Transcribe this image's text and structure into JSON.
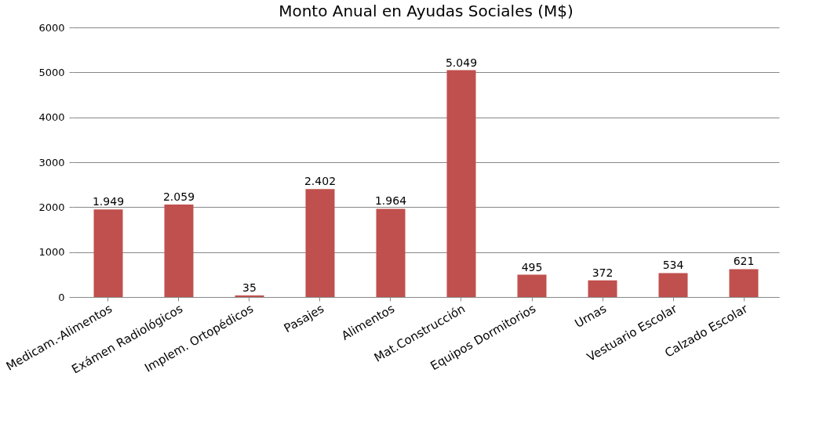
{
  "chart_data": {
    "type": "bar",
    "title": "Monto Anual en Ayudas Sociales (M$)",
    "categories": [
      "Medicam.-Alimentos",
      "Exámen Radiológicos",
      "Implem. Ortopédicos",
      "Pasajes",
      "Alimentos",
      "Mat.Construcción",
      "Equipos Dormitorios",
      "Urnas",
      "Vestuario Escolar",
      "Calzado Escolar"
    ],
    "values": [
      1949,
      2059,
      35,
      2402,
      1964,
      5049,
      495,
      372,
      534,
      621
    ],
    "value_labels": [
      "1.949",
      "2.059",
      "35",
      "2.402",
      "1.964",
      "5.049",
      "495",
      "372",
      "534",
      "621"
    ],
    "color": "#c0504d",
    "ylim": [
      0,
      6000
    ],
    "yticks": [
      0,
      1000,
      2000,
      3000,
      4000,
      5000,
      6000
    ],
    "grid": "y"
  }
}
